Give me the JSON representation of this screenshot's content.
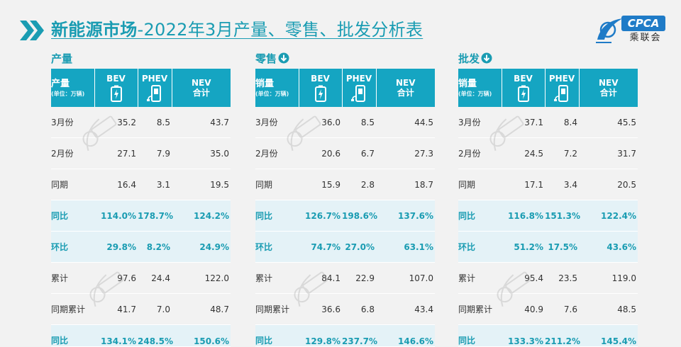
{
  "header": {
    "title_strong": "新能源市场",
    "title_rest": "-2022年3月产量、零售、批发分析表",
    "logo_text": "CPCA",
    "logo_cn": "乘联会",
    "logo_small": "CPCA"
  },
  "colors": {
    "accent": "#1a9cb2",
    "header_fill": "#15a5c2",
    "highlight_row": "#e4f2f7",
    "logo_blue": "#1f7bc7"
  },
  "columns": {
    "bev": "BEV",
    "phev": "PHEV",
    "nev": "NEV",
    "nev_sub": "合计",
    "unit": "(单位：万辆)"
  },
  "sections": [
    {
      "title": "产量",
      "has_icon": false,
      "first_header": "产量",
      "rows": [
        {
          "label": "3月份",
          "bev": "35.2",
          "phev": "8.5",
          "nev": "43.7",
          "hl": false
        },
        {
          "label": "2月份",
          "bev": "27.1",
          "phev": "7.9",
          "nev": "35.0",
          "hl": false
        },
        {
          "label": "同期",
          "bev": "16.4",
          "phev": "3.1",
          "nev": "19.5",
          "hl": false
        },
        {
          "label": "同比",
          "bev": "114.0%",
          "phev": "178.7%",
          "nev": "124.2%",
          "hl": true
        },
        {
          "label": "环比",
          "bev": "29.8%",
          "phev": "8.2%",
          "nev": "24.9%",
          "hl": true
        },
        {
          "label": "累计",
          "bev": "97.6",
          "phev": "24.4",
          "nev": "122.0",
          "hl": false
        },
        {
          "label": "同期累计",
          "bev": "41.7",
          "phev": "7.0",
          "nev": "48.7",
          "hl": false
        },
        {
          "label": "同比",
          "bev": "134.1%",
          "phev": "248.5%",
          "nev": "150.6%",
          "hl": true
        }
      ]
    },
    {
      "title": "零售",
      "has_icon": true,
      "first_header": "销量",
      "rows": [
        {
          "label": "3月份",
          "bev": "36.0",
          "phev": "8.5",
          "nev": "44.5",
          "hl": false
        },
        {
          "label": "2月份",
          "bev": "20.6",
          "phev": "6.7",
          "nev": "27.3",
          "hl": false
        },
        {
          "label": "同期",
          "bev": "15.9",
          "phev": "2.8",
          "nev": "18.7",
          "hl": false
        },
        {
          "label": "同比",
          "bev": "126.7%",
          "phev": "198.6%",
          "nev": "137.6%",
          "hl": true
        },
        {
          "label": "环比",
          "bev": "74.7%",
          "phev": "27.0%",
          "nev": "63.1%",
          "hl": true
        },
        {
          "label": "累计",
          "bev": "84.1",
          "phev": "22.9",
          "nev": "107.0",
          "hl": false
        },
        {
          "label": "同期累计",
          "bev": "36.6",
          "phev": "6.8",
          "nev": "43.4",
          "hl": false
        },
        {
          "label": "同比",
          "bev": "129.8%",
          "phev": "237.7%",
          "nev": "146.6%",
          "hl": true
        }
      ]
    },
    {
      "title": "批发",
      "has_icon": true,
      "first_header": "销量",
      "rows": [
        {
          "label": "3月份",
          "bev": "37.1",
          "phev": "8.4",
          "nev": "45.5",
          "hl": false
        },
        {
          "label": "2月份",
          "bev": "24.5",
          "phev": "7.2",
          "nev": "31.7",
          "hl": false
        },
        {
          "label": "同期",
          "bev": "17.1",
          "phev": "3.4",
          "nev": "20.5",
          "hl": false
        },
        {
          "label": "同比",
          "bev": "116.8%",
          "phev": "151.3%",
          "nev": "122.4%",
          "hl": true
        },
        {
          "label": "环比",
          "bev": "51.2%",
          "phev": "17.5%",
          "nev": "43.6%",
          "hl": true
        },
        {
          "label": "累计",
          "bev": "95.4",
          "phev": "23.5",
          "nev": "119.0",
          "hl": false
        },
        {
          "label": "同期累计",
          "bev": "40.9",
          "phev": "7.6",
          "nev": "48.5",
          "hl": false
        },
        {
          "label": "同比",
          "bev": "133.3%",
          "phev": "211.2%",
          "nev": "145.4%",
          "hl": true
        }
      ]
    }
  ]
}
